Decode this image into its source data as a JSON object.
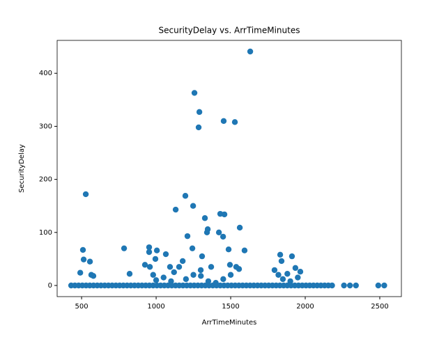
{
  "chart_data": {
    "type": "scatter",
    "title": "SecurityDelay vs. ArrTimeMinutes",
    "x_label": "ArrTimeMinutes",
    "y_label": "SecurityDelay",
    "color": "#1f77b4",
    "xlim": [
      336,
      2645
    ],
    "ylim": [
      -21,
      462
    ],
    "xticks": [
      500,
      1000,
      1500,
      2000,
      2500
    ],
    "yticks": [
      0,
      100,
      200,
      300,
      400
    ],
    "x": [
      1631,
      1257,
      1290,
      1285,
      1453,
      1528,
      528,
      1196,
      1248,
      1131,
      1430,
      1458,
      1327,
      1561,
      1346,
      1341,
      1421,
      1210,
      1449,
      1243,
      1308,
      1486,
      1593,
      509,
      785,
      953,
      953,
      1005,
      1065,
      1093,
      1154,
      1832,
      1911,
      514,
      556,
      1841,
      995,
      925,
      958,
      822,
      491,
      565,
      579,
      1299,
      1369,
      1495,
      1537,
      1556,
      1794,
      1934,
      1967,
      1178,
      1000,
      1050,
      1100,
      1200,
      1250,
      1300,
      1350,
      1400,
      1450,
      1850,
      1900,
      1950,
      980,
      1120,
      1500,
      1820,
      1880,
      430,
      455,
      480,
      505,
      530,
      555,
      580,
      605,
      630,
      655,
      680,
      705,
      730,
      755,
      780,
      805,
      830,
      855,
      880,
      905,
      930,
      955,
      980,
      1005,
      1030,
      1055,
      1080,
      1105,
      1130,
      1155,
      1180,
      1205,
      1230,
      1255,
      1280,
      1305,
      1330,
      1355,
      1380,
      1405,
      1430,
      1455,
      1480,
      1505,
      1530,
      1555,
      1580,
      1605,
      1630,
      1655,
      1680,
      1705,
      1730,
      1755,
      1780,
      1805,
      1830,
      1855,
      1880,
      1905,
      1930,
      1955,
      1980,
      2005,
      2030,
      2055,
      2080,
      2105,
      2130,
      2155,
      2180,
      2260,
      2300,
      2340,
      2490,
      2530
    ],
    "y": [
      441,
      363,
      327,
      298,
      310,
      308,
      172,
      169,
      150,
      143,
      135,
      134,
      127,
      109,
      106,
      100,
      100,
      93,
      92,
      70,
      55,
      68,
      66,
      67,
      70,
      72,
      63,
      66,
      59,
      35,
      35,
      58,
      55,
      49,
      45,
      46,
      50,
      39,
      35,
      22,
      24,
      20,
      18,
      29,
      35,
      39,
      35,
      31,
      29,
      33,
      26,
      46,
      10,
      15,
      8,
      12,
      20,
      18,
      8,
      5,
      12,
      12,
      8,
      15,
      20,
      25,
      20,
      20,
      22,
      0,
      0,
      0,
      0,
      0,
      0,
      0,
      0,
      0,
      0,
      0,
      0,
      0,
      0,
      0,
      0,
      0,
      0,
      0,
      0,
      0,
      0,
      0,
      0,
      0,
      0,
      0,
      0,
      0,
      0,
      0,
      0,
      0,
      0,
      0,
      0,
      0,
      0,
      0,
      0,
      0,
      0,
      0,
      0,
      0,
      0,
      0,
      0,
      0,
      0,
      0,
      0,
      0,
      0,
      0,
      0,
      0,
      0,
      0,
      0,
      0,
      0,
      0,
      0,
      0,
      0,
      0,
      0,
      0,
      0,
      0,
      0,
      0,
      0,
      0,
      0
    ]
  }
}
